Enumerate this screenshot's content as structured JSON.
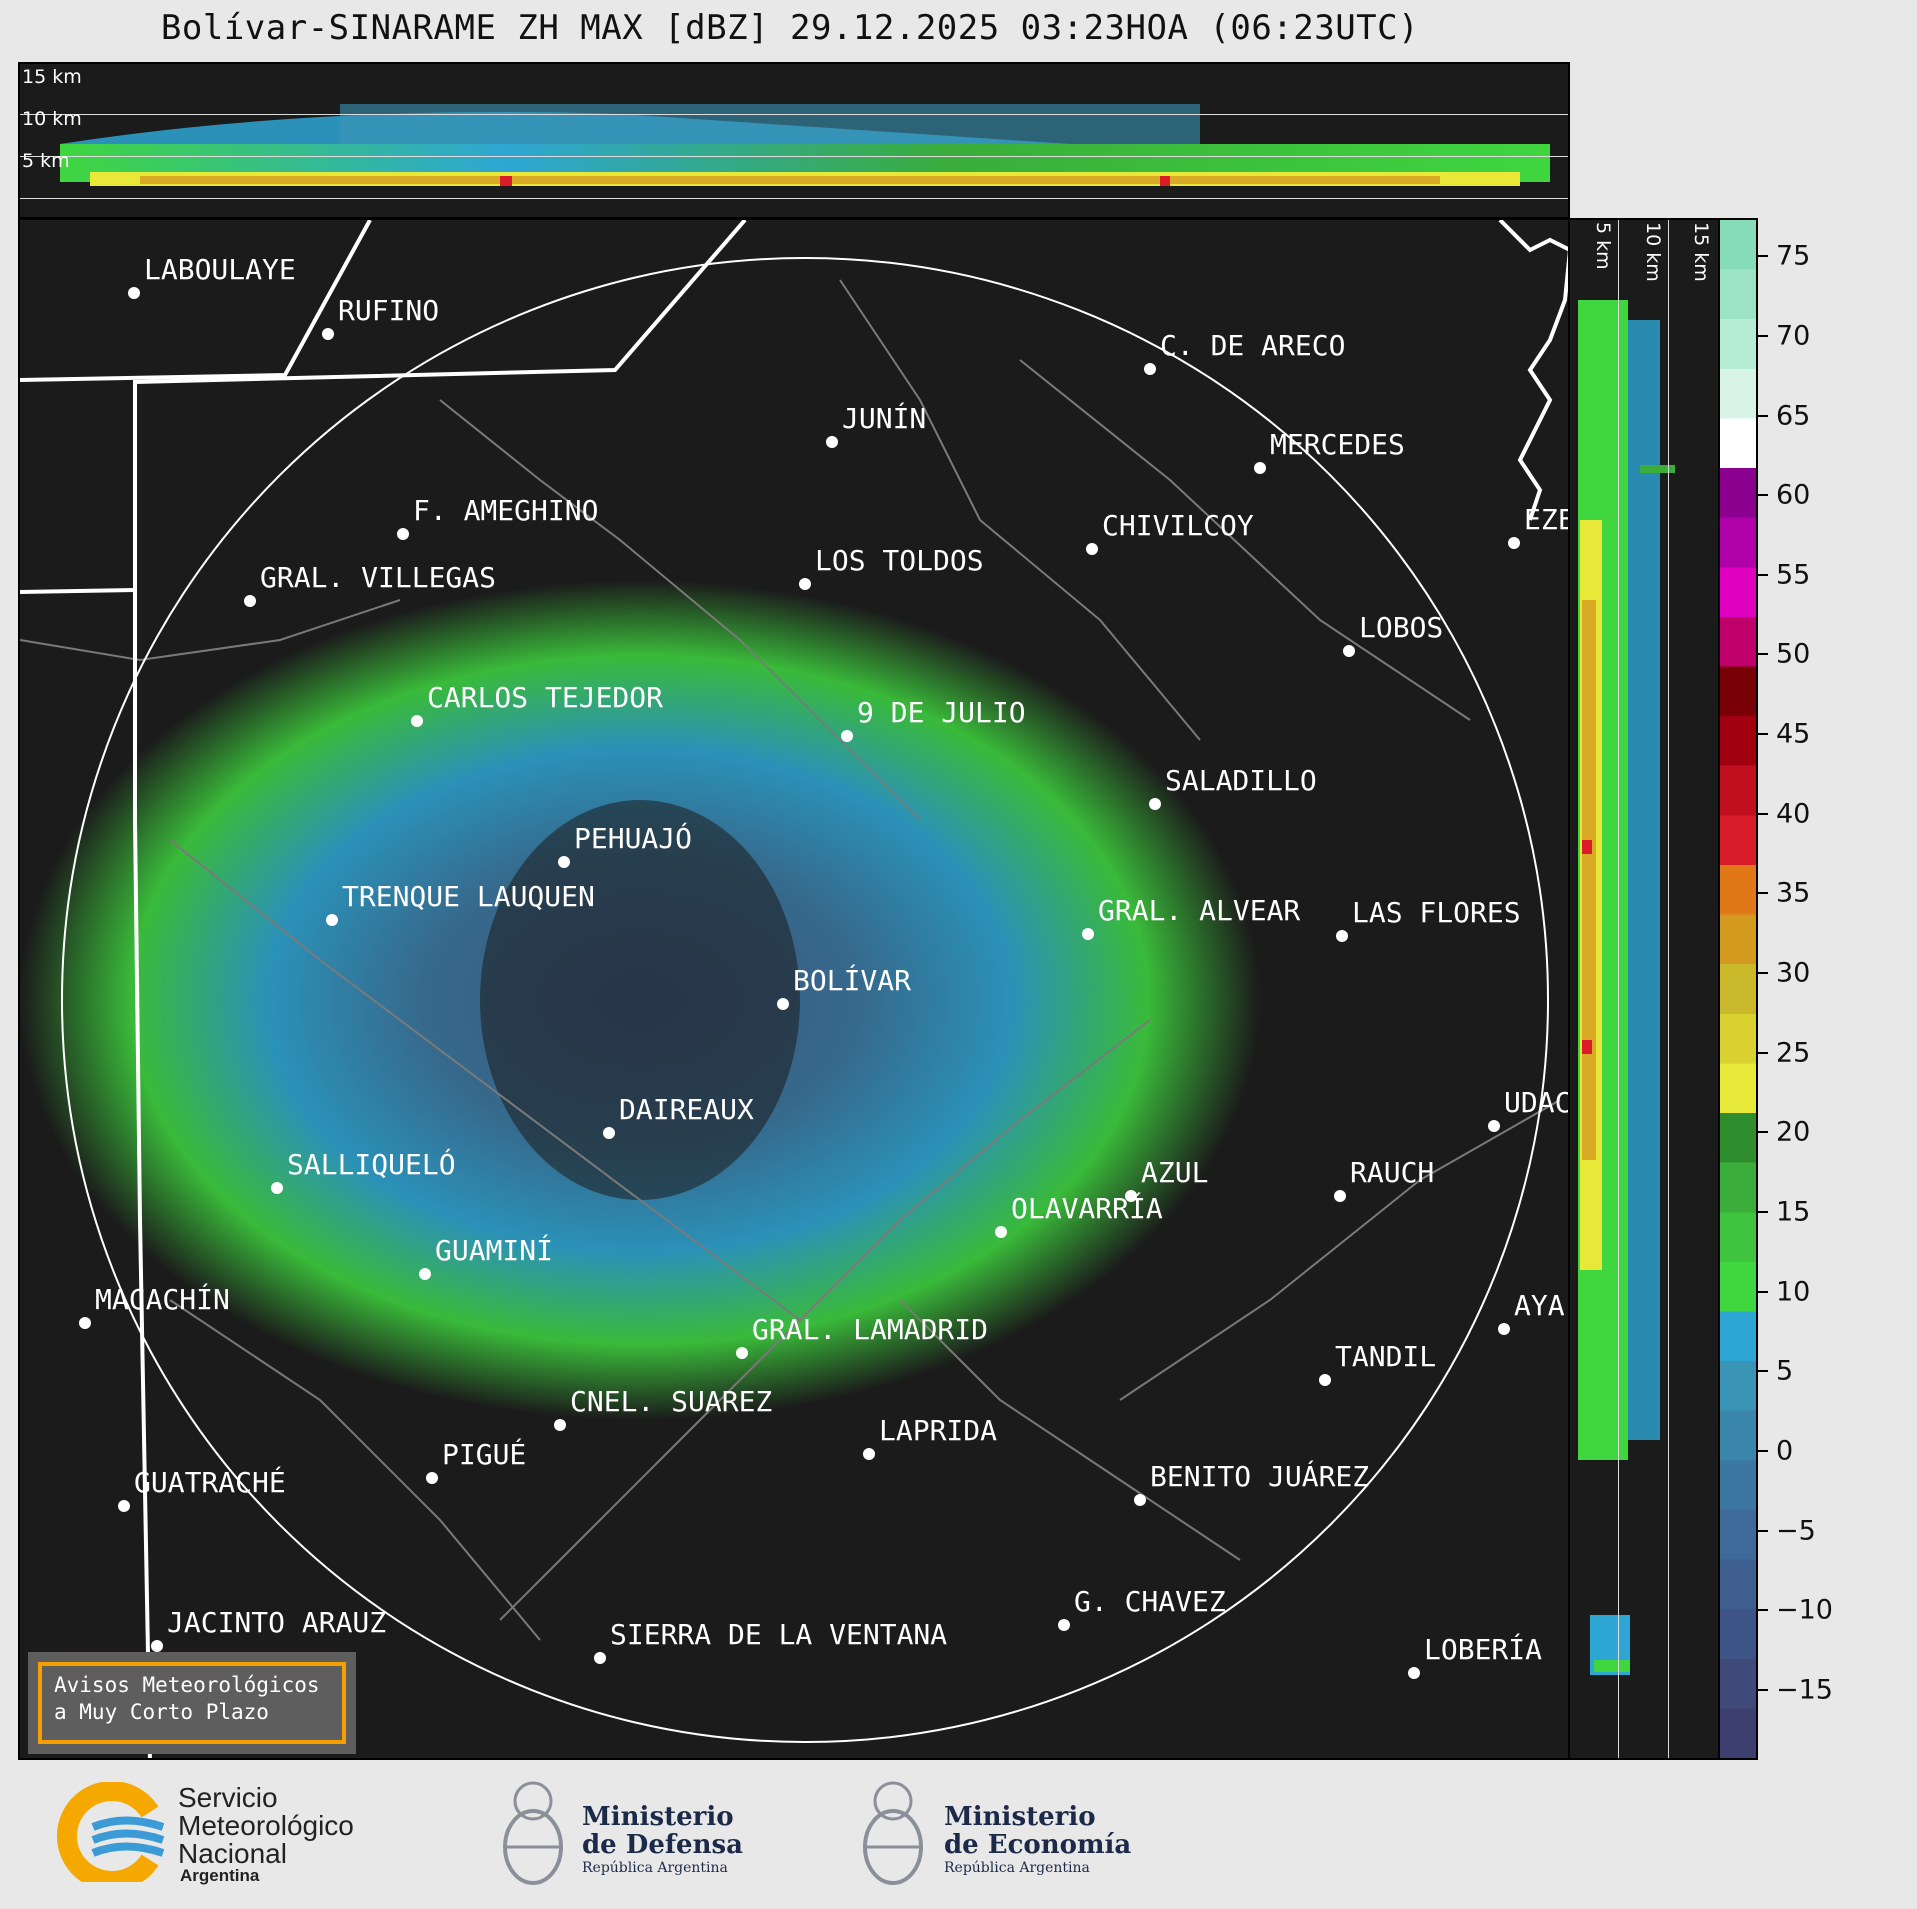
{
  "title": "Bolívar-SINARAME ZH MAX [dBZ] 29.12.2025 03:23HOA (06:23UTC)",
  "top_section": {
    "altitude_labels": [
      "15 km",
      "10 km",
      "5 km"
    ]
  },
  "side_section": {
    "altitude_labels": [
      "5 km",
      "10 km",
      "15 km"
    ]
  },
  "cities": [
    {
      "name": "LABOULAYE"
    },
    {
      "name": "RUFINO"
    },
    {
      "name": "C. DE ARECO"
    },
    {
      "name": "JUNÍN"
    },
    {
      "name": "MERCEDES"
    },
    {
      "name": "F. AMEGHINO"
    },
    {
      "name": "GRAL. VILLEGAS"
    },
    {
      "name": "CHIVILCOY"
    },
    {
      "name": "LOS TOLDOS"
    },
    {
      "name": "EZE"
    },
    {
      "name": "LOBOS"
    },
    {
      "name": "CARLOS TEJEDOR"
    },
    {
      "name": "9 DE JULIO"
    },
    {
      "name": "SALADILLO"
    },
    {
      "name": "PEHUAJÓ"
    },
    {
      "name": "TRENQUE LAUQUEN"
    },
    {
      "name": "GRAL. ALVEAR"
    },
    {
      "name": "LAS FLORES"
    },
    {
      "name": "BOLÍVAR"
    },
    {
      "name": "DAIREAUX"
    },
    {
      "name": "UDAC"
    },
    {
      "name": "SALLIQUELÓ"
    },
    {
      "name": "AZUL"
    },
    {
      "name": "RAUCH"
    },
    {
      "name": "OLAVARRÍA"
    },
    {
      "name": "GUAMINÍ"
    },
    {
      "name": "MACACHÍN"
    },
    {
      "name": "AYA"
    },
    {
      "name": "GRAL. LAMADRID"
    },
    {
      "name": "TANDIL"
    },
    {
      "name": "CNEL. SUAREZ"
    },
    {
      "name": "LAPRIDA"
    },
    {
      "name": "PIGUÉ"
    },
    {
      "name": "GUATRACHÉ"
    },
    {
      "name": "BENITO JUÁREZ"
    },
    {
      "name": "G. CHAVEZ"
    },
    {
      "name": "JACINTO ARAUZ"
    },
    {
      "name": "SIERRA DE LA VENTANA"
    },
    {
      "name": "LOBERÍA"
    }
  ],
  "colorbar": {
    "labels": [
      "75",
      "70",
      "65",
      "60",
      "55",
      "50",
      "45",
      "40",
      "35",
      "30",
      "25",
      "20",
      "15",
      "10",
      "5",
      "0",
      "−5",
      "−10",
      "−15"
    ],
    "bands": [
      "#3d3f6e",
      "#3f4a7a",
      "#3f5486",
      "#3f5e90",
      "#3d6a98",
      "#3b77a0",
      "#3a85aa",
      "#3a94b6",
      "#2ea6d4",
      "#3fd63f",
      "#3fc43f",
      "#3aad3a",
      "#2e8e2e",
      "#e8e838",
      "#d9d130",
      "#c8b82a",
      "#d49a20",
      "#e07818",
      "#d91c2a",
      "#c01020",
      "#a00010",
      "#7a0008",
      "#c0006a",
      "#e000c0",
      "#b000a8",
      "#8c0090",
      "#ffffff",
      "#d8f4e6",
      "#b4ecd4",
      "#9ce2c4",
      "#86dcb8"
    ]
  },
  "avisos": {
    "line1": "Avisos Meteorológicos",
    "line2": "a Muy Corto Plazo"
  },
  "logos": {
    "smn": {
      "line1": "Servicio",
      "line2": "Meteorológico",
      "line3": "Nacional",
      "line4": "Argentina"
    },
    "defensa": {
      "line1": "Ministerio",
      "line2": "de Defensa",
      "line3": "República Argentina"
    },
    "economia": {
      "line1": "Ministerio",
      "line2": "de Economía",
      "line3": "República Argentina"
    }
  }
}
